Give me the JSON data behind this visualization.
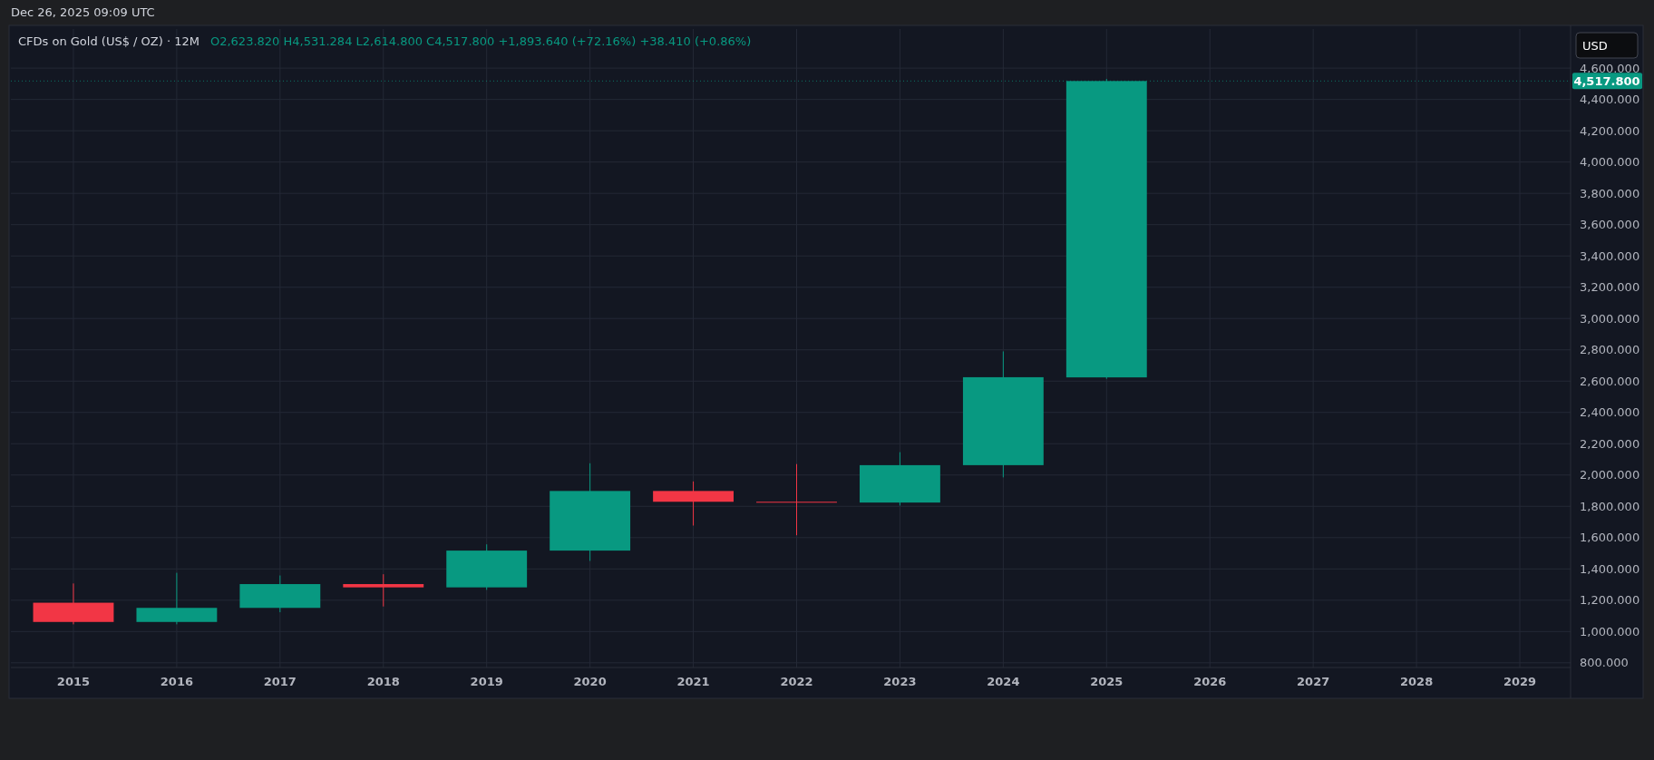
{
  "chart_data": {
    "type": "candlestick",
    "title": "CFDs on Gold (US$ / OZ) · 12M",
    "subtitle": "O2,623.820  H4,531.284  L2,614.800  C4,517.800  +1,893.640 (+72.16%)  +38.410 (+0.86%)",
    "categories": [
      "2015",
      "2016",
      "2017",
      "2018",
      "2019",
      "2020",
      "2021",
      "2022",
      "2023",
      "2024",
      "2025",
      "2026",
      "2027",
      "2028",
      "2029"
    ],
    "ohlc": [
      [
        1184,
        1307,
        1046,
        1061
      ],
      [
        1061,
        1375,
        1046,
        1151
      ],
      [
        1151,
        1358,
        1123,
        1303
      ],
      [
        1303,
        1366,
        1160,
        1282
      ],
      [
        1282,
        1557,
        1266,
        1517
      ],
      [
        1517,
        2075,
        1451,
        1898
      ],
      [
        1898,
        1959,
        1677,
        1829
      ],
      [
        1829,
        2070,
        1615,
        1824
      ],
      [
        1824,
        2146,
        1805,
        2063
      ],
      [
        2063,
        2790,
        1985,
        2625
      ],
      [
        2623.82,
        4531.284,
        2614.8,
        4517.8
      ],
      null,
      null,
      null,
      null
    ],
    "colors": [
      "#f23645",
      "#089981",
      "#089981",
      "#f23645",
      "#089981",
      "#089981",
      "#f23645",
      "#f23645",
      "#089981",
      "#089981",
      "#089981",
      null,
      null,
      null,
      null
    ],
    "ylim": [
      770,
      4850
    ],
    "yticks": [
      {
        "value": 800,
        "label": "800.000"
      },
      {
        "value": 1000,
        "label": "1,000.000"
      },
      {
        "value": 1200,
        "label": "1,200.000"
      },
      {
        "value": 1400,
        "label": "1,400.000"
      },
      {
        "value": 1600,
        "label": "1,600.000"
      },
      {
        "value": 1800,
        "label": "1,800.000"
      },
      {
        "value": 2000,
        "label": "2,000.000"
      },
      {
        "value": 2200,
        "label": "2,200.000"
      },
      {
        "value": 2400,
        "label": "2,400.000"
      },
      {
        "value": 2600,
        "label": "2,600.000"
      },
      {
        "value": 2800,
        "label": "2,800.000"
      },
      {
        "value": 3000,
        "label": "3,000.000"
      },
      {
        "value": 3200,
        "label": "3,200.000"
      },
      {
        "value": 3400,
        "label": "3,400.000"
      },
      {
        "value": 3600,
        "label": "3,600.000"
      },
      {
        "value": 3800,
        "label": "3,800.000"
      },
      {
        "value": 4000,
        "label": "4,000.000"
      },
      {
        "value": 4200,
        "label": "4,200.000"
      },
      {
        "value": 4400,
        "label": "4,400.000"
      },
      {
        "value": 4600,
        "label": "4,600.000"
      }
    ],
    "ref_lines": [
      {
        "axis": "y",
        "value": 4517.8,
        "label": "4,517.800",
        "color": "#089981"
      }
    ],
    "grid": true,
    "annotations": [
      "Dec 26, 2025 09:09 UTC",
      "USD"
    ]
  }
}
